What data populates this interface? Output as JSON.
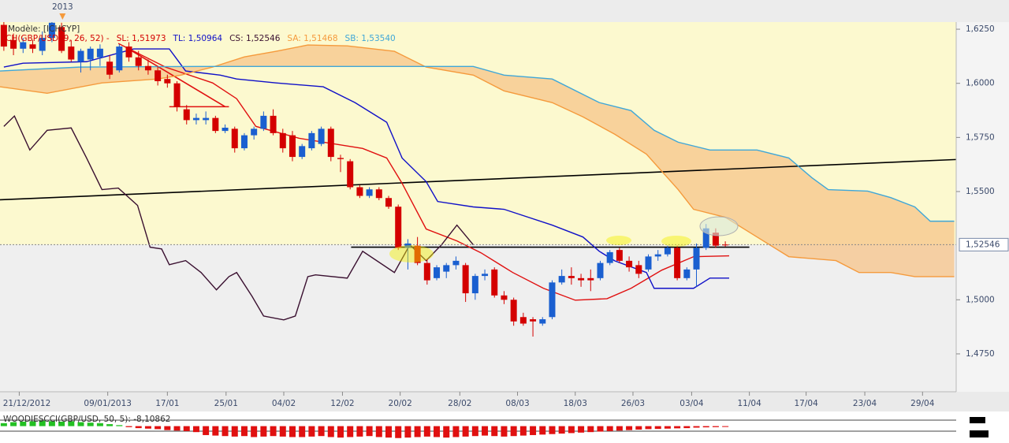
{
  "chart_data": {
    "type": "candlestick",
    "model_label": "Modèle: [ICHCYP]",
    "indicator_label": "ICH(GBP/USD, 9, 26, 52) -",
    "legend": [
      {
        "label": "SL: 1,51973",
        "color": "#d40000"
      },
      {
        "label": "TL: 1,50964",
        "color": "#1010c8"
      },
      {
        "label": "CS: 1,52546",
        "color": "#3a1030"
      },
      {
        "label": "SA: 1,51468",
        "color": "#f59a3c"
      },
      {
        "label": "SB: 1,53540",
        "color": "#3fa7d8"
      }
    ],
    "year_marker": {
      "label": "2013",
      "x": 6.1,
      "color": "#f59a3c"
    },
    "up_color": "#1a5fd0",
    "down_color": "#d40000",
    "x": [
      0,
      1,
      2,
      3,
      4,
      5,
      6,
      7,
      8,
      9,
      10,
      11,
      12,
      13,
      14,
      15,
      16,
      17,
      18,
      19,
      20,
      21,
      22,
      23,
      24,
      25,
      26,
      27,
      28,
      29,
      30,
      31,
      32,
      33,
      34,
      35,
      36,
      37,
      38,
      39,
      40,
      41,
      42,
      43,
      44,
      45,
      46,
      47,
      48,
      49,
      50,
      51,
      52,
      53,
      54,
      55,
      56,
      57,
      58,
      59,
      60,
      61,
      62,
      63,
      64,
      65,
      66,
      67,
      68,
      69,
      70,
      71,
      72,
      73,
      74,
      75
    ],
    "open": [
      1.627,
      1.62,
      1.616,
      1.618,
      1.615,
      1.621,
      1.626,
      1.617,
      1.61,
      1.611,
      1.612,
      1.61,
      1.606,
      1.617,
      1.612,
      1.608,
      1.606,
      1.602,
      1.6,
      1.588,
      1.583,
      1.583,
      1.584,
      1.578,
      1.579,
      1.57,
      1.576,
      1.579,
      1.585,
      1.577,
      1.576,
      1.566,
      1.57,
      1.572,
      1.579,
      1.5655,
      1.564,
      1.552,
      1.548,
      1.551,
      1.547,
      1.543,
      1.524,
      1.525,
      1.517,
      1.51,
      1.513,
      1.516,
      1.516,
      1.503,
      1.511,
      1.514,
      1.502,
      1.5,
      1.492,
      1.491,
      1.489,
      1.492,
      1.508,
      1.511,
      1.51,
      1.51,
      1.51,
      1.517,
      1.523,
      1.518,
      1.516,
      1.514,
      1.52,
      1.521,
      1.524,
      1.51,
      1.514,
      1.524,
      1.531,
      1.5255
    ],
    "high": [
      1.6285,
      1.623,
      1.621,
      1.62,
      1.624,
      1.63,
      1.628,
      1.62,
      1.616,
      1.617,
      1.618,
      1.613,
      1.618,
      1.619,
      1.615,
      1.611,
      1.608,
      1.604,
      1.601,
      1.59,
      1.586,
      1.587,
      1.585,
      1.581,
      1.58,
      1.577,
      1.58,
      1.587,
      1.588,
      1.579,
      1.578,
      1.572,
      1.578,
      1.58,
      1.58,
      1.567,
      1.565,
      1.553,
      1.552,
      1.552,
      1.548,
      1.544,
      1.528,
      1.529,
      1.519,
      1.516,
      1.517,
      1.52,
      1.517,
      1.512,
      1.514,
      1.515,
      1.504,
      1.501,
      1.494,
      1.492,
      1.492,
      1.509,
      1.514,
      1.515,
      1.512,
      1.514,
      1.518,
      1.523,
      1.524,
      1.52,
      1.518,
      1.521,
      1.523,
      1.525,
      1.525,
      1.515,
      1.526,
      1.535,
      1.533,
      1.527
    ],
    "low": [
      1.615,
      1.613,
      1.614,
      1.614,
      1.613,
      1.619,
      1.614,
      1.61,
      1.605,
      1.606,
      1.608,
      1.602,
      1.605,
      1.61,
      1.606,
      1.604,
      1.599,
      1.598,
      1.587,
      1.581,
      1.581,
      1.581,
      1.577,
      1.577,
      1.568,
      1.569,
      1.574,
      1.578,
      1.576,
      1.568,
      1.564,
      1.565,
      1.569,
      1.571,
      1.564,
      1.559,
      1.551,
      1.547,
      1.547,
      1.546,
      1.542,
      1.523,
      1.514,
      1.516,
      1.507,
      1.509,
      1.51,
      1.514,
      1.499,
      1.5,
      1.509,
      1.501,
      1.498,
      1.488,
      1.488,
      1.483,
      1.488,
      1.491,
      1.507,
      1.507,
      1.506,
      1.504,
      1.509,
      1.516,
      1.517,
      1.513,
      1.51,
      1.513,
      1.518,
      1.52,
      1.509,
      1.509,
      1.506,
      1.523,
      1.524,
      1.5245
    ],
    "close": [
      1.617,
      1.616,
      1.619,
      1.616,
      1.621,
      1.628,
      1.615,
      1.611,
      1.615,
      1.616,
      1.616,
      1.604,
      1.617,
      1.612,
      1.608,
      1.606,
      1.601,
      1.6,
      1.589,
      1.583,
      1.584,
      1.584,
      1.578,
      1.5795,
      1.57,
      1.576,
      1.579,
      1.585,
      1.577,
      1.57,
      1.566,
      1.571,
      1.577,
      1.579,
      1.566,
      1.565,
      1.552,
      1.548,
      1.551,
      1.547,
      1.543,
      1.524,
      1.526,
      1.517,
      1.509,
      1.515,
      1.516,
      1.518,
      1.503,
      1.511,
      1.512,
      1.502,
      1.5,
      1.49,
      1.489,
      1.49,
      1.491,
      1.508,
      1.511,
      1.51,
      1.509,
      1.509,
      1.517,
      1.522,
      1.518,
      1.515,
      1.512,
      1.52,
      1.521,
      1.524,
      1.51,
      1.514,
      1.524,
      1.533,
      1.525,
      1.52546
    ],
    "lines": [
      {
        "color": "#e01010",
        "x": [
          11.9,
          16.8,
          21.7,
          24.2,
          26.2,
          30.7,
          37.3,
          39.8,
          41.4,
          43.9,
          47.1,
          49.6,
          52.9,
          56.1,
          59.4,
          62.7,
          65.2,
          68.4,
          71.7,
          75.4
        ],
        "values": [
          1.6184,
          1.6075,
          1.6002,
          1.5929,
          1.5801,
          1.5746,
          1.5699,
          1.5655,
          1.5538,
          1.5327,
          1.5272,
          1.5217,
          1.5126,
          1.5053,
          1.4998,
          1.5005,
          1.5053,
          1.5137,
          1.5199,
          1.5203
        ]
      },
      {
        "color": "#1010c8",
        "x": [
          0,
          2,
          8.6,
          13.5,
          17.2,
          18.9,
          22.5,
          24.2,
          28.3,
          33.2,
          36.5,
          39.8,
          41.4,
          43.9,
          45.1,
          48.8,
          52,
          57,
          60.2,
          61.9,
          63.5,
          66.8,
          67.6,
          71.7,
          73.4,
          75.4
        ],
        "values": [
          1.6075,
          1.6093,
          1.61,
          1.6159,
          1.6159,
          1.6057,
          1.6038,
          1.602,
          1.6002,
          1.5984,
          1.5911,
          1.582,
          1.5655,
          1.5546,
          1.5454,
          1.5429,
          1.5418,
          1.5345,
          1.529,
          1.5224,
          1.518,
          1.5126,
          1.5053,
          1.5053,
          1.51,
          1.51
        ]
      },
      {
        "color": "#f59a3c",
        "x": [
          -0.4,
          4.5,
          10.2,
          16,
          18.4,
          21.7,
          25,
          28.3,
          31.6,
          35.7,
          40.6,
          43.9,
          48.8,
          52,
          57,
          60.2,
          63.5,
          66.8,
          70.1,
          71.7,
          75,
          78.3,
          81.6,
          86.5,
          88.9,
          92.2,
          94.7,
          98.8
        ],
        "values": [
          1.5984,
          1.5954,
          1.6002,
          1.602,
          1.6038,
          1.6075,
          1.6122,
          1.6148,
          1.6177,
          1.6173,
          1.6148,
          1.6075,
          1.6038,
          1.5965,
          1.5911,
          1.5845,
          1.5765,
          1.5673,
          1.5509,
          1.5418,
          1.5381,
          1.529,
          1.5199,
          1.5181,
          1.5126,
          1.5126,
          1.5107,
          1.5107
        ]
      },
      {
        "color": "#3fa7d8",
        "x": [
          -0.4,
          7.8,
          20.1,
          48.8,
          52,
          57,
          61.9,
          65.2,
          67.6,
          70.1,
          73.4,
          78.3,
          81.6,
          84,
          85.7,
          89.8,
          92.2,
          94.7,
          96.3,
          98.8
        ],
        "values": [
          1.6057,
          1.6075,
          1.6078,
          1.6078,
          1.6038,
          1.602,
          1.5911,
          1.5874,
          1.5783,
          1.5728,
          1.5692,
          1.5692,
          1.5655,
          1.5564,
          1.5509,
          1.5502,
          1.5472,
          1.5429,
          1.5363,
          1.5363
        ]
      },
      {
        "color": "#3a1030",
        "x": [
          0,
          1.1,
          2.7,
          4.5,
          7,
          8.6,
          10.2,
          11.9,
          13.9,
          15.2,
          16.4,
          17.2,
          18.9,
          20.5,
          22.1,
          23.4,
          24.2,
          25.8,
          27,
          29.1,
          30.3,
          31.6,
          32.4,
          35.7,
          37.3,
          40.6,
          42.2,
          43.9,
          45.5,
          47.1,
          48.8
        ],
        "values": [
          1.5801,
          1.5849,
          1.5692,
          1.5783,
          1.5794,
          1.5655,
          1.5509,
          1.5516,
          1.5436,
          1.5243,
          1.5235,
          1.5162,
          1.5181,
          1.5126,
          1.5046,
          1.5107,
          1.5126,
          1.5016,
          1.4925,
          1.4907,
          1.4925,
          1.5107,
          1.5115,
          1.51,
          1.5224,
          1.5126,
          1.5254,
          1.5181,
          1.5254,
          1.5345,
          1.5254
        ]
      }
    ],
    "trendlines": [
      {
        "color": "#000000",
        "x": [
          -0.4,
          99
        ],
        "values": [
          1.5462,
          1.5648
        ]
      },
      {
        "color": "#000000",
        "x": [
          36.1,
          77.5
        ],
        "values": [
          1.5243,
          1.5243
        ]
      },
      {
        "color": "#e01010",
        "x": [
          17.2,
          23.4
        ],
        "values": [
          1.5892,
          1.5892
        ]
      },
      {
        "color": "#e01010",
        "x": [
          12.7,
          23
        ],
        "values": [
          1.6166,
          1.5892
        ]
      }
    ],
    "cloud_color": "#f7c48a",
    "current_price": {
      "value": 1.52546,
      "label": "1,52546"
    },
    "xlim": [
      -0.4,
      99
    ],
    "ylim": [
      1.4575,
      1.6283
    ],
    "xticks": [
      {
        "value": 1.6,
        "label": "21/12/2012"
      },
      {
        "value": 10.8,
        "label": "09/01/2013"
      },
      {
        "value": 17,
        "label": "17/01"
      },
      {
        "value": 23.1,
        "label": "25/01"
      },
      {
        "value": 29.1,
        "label": "04/02"
      },
      {
        "value": 35.2,
        "label": "12/02"
      },
      {
        "value": 41.2,
        "label": "20/02"
      },
      {
        "value": 47.4,
        "label": "28/02"
      },
      {
        "value": 53.4,
        "label": "08/03"
      },
      {
        "value": 59.4,
        "label": "18/03"
      },
      {
        "value": 65.4,
        "label": "26/03"
      },
      {
        "value": 71.5,
        "label": "03/04"
      },
      {
        "value": 77.5,
        "label": "11/04"
      },
      {
        "value": 83.4,
        "label": "17/04"
      },
      {
        "value": 89.5,
        "label": "23/04"
      },
      {
        "value": 95.5,
        "label": "29/04"
      }
    ],
    "yticks": [
      {
        "value": 1.625,
        "label": "1,6250"
      },
      {
        "value": 1.6,
        "label": "1,6000"
      },
      {
        "value": 1.575,
        "label": "1,5750"
      },
      {
        "value": 1.55,
        "label": "1,5500"
      },
      {
        "value": 1.5,
        "label": "1,5000"
      },
      {
        "value": 1.475,
        "label": "1,4750"
      }
    ],
    "oscillator": {
      "label": "WOODIESCCI(GBP/USD, 50, 5): -8,10862",
      "ylim": [
        -130,
        100
      ],
      "positive_color": "#22c022",
      "negative_color": "#e01010",
      "values": [
        30,
        40,
        45,
        50,
        55,
        50,
        45,
        50,
        40,
        35,
        30,
        20,
        10,
        -10,
        -20,
        -25,
        -30,
        -40,
        -45,
        -50,
        -60,
        -90,
        -95,
        -100,
        -105,
        -100,
        -110,
        -105,
        -100,
        -105,
        -110,
        -110,
        -105,
        -100,
        -110,
        -115,
        -110,
        -105,
        -100,
        -110,
        -115,
        -120,
        -115,
        -110,
        -105,
        -110,
        -115,
        -110,
        -105,
        -100,
        -95,
        -100,
        -105,
        -100,
        -95,
        -90,
        -85,
        -80,
        -75,
        -70,
        -65,
        -60,
        -55,
        -50,
        -45,
        -40,
        -35,
        -30,
        -28,
        -25,
        -22,
        -20,
        -15,
        -12,
        -10,
        -8.10862
      ]
    }
  }
}
